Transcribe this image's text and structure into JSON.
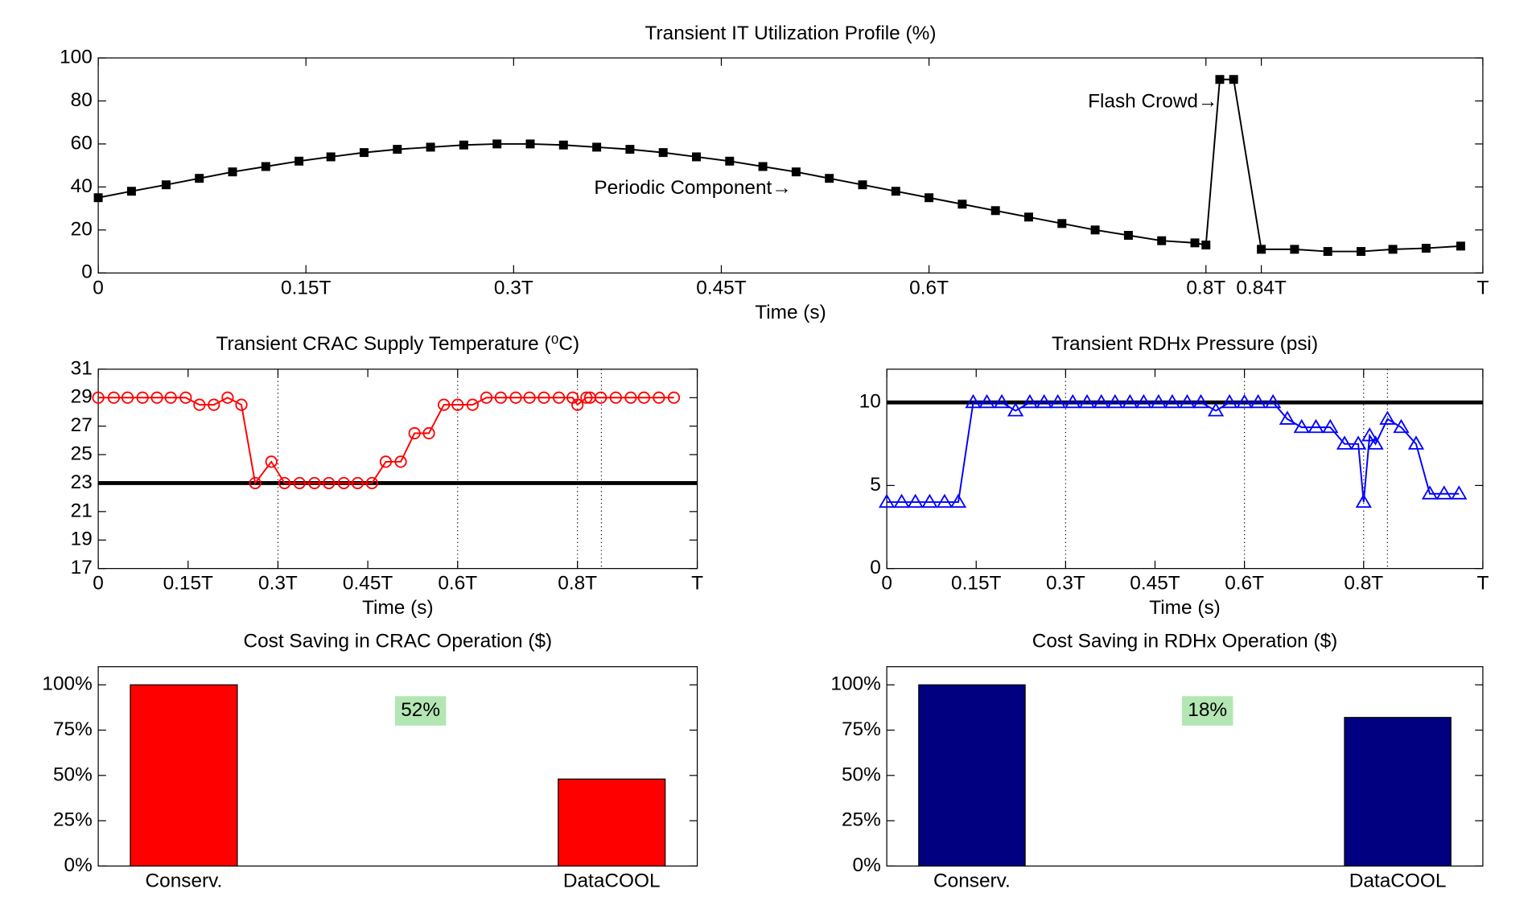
{
  "chart_data": [
    {
      "type": "line",
      "title": "Transient IT Utilization Profile (%)",
      "xlabel": "Time (s)",
      "xlim": [
        0,
        1
      ],
      "xticks": [
        0,
        {
          "value": 0.15,
          "label": "0.15T"
        },
        {
          "value": 0.3,
          "label": "0.3T"
        },
        {
          "value": 0.45,
          "label": "0.45T"
        },
        {
          "value": 0.6,
          "label": "0.6T"
        },
        {
          "value": 0.8,
          "label": "0.8T"
        },
        {
          "value": 0.84,
          "label": "0.84T"
        },
        {
          "value": 1,
          "label": "T"
        }
      ],
      "ylim": [
        0,
        100
      ],
      "yticks": [
        0,
        20,
        40,
        60,
        80,
        100
      ],
      "annotations": [
        "Periodic Component→",
        "Flash Crowd→"
      ],
      "series": [
        {
          "color": "#000000",
          "marker": "square",
          "x": [
            0,
            0.024,
            0.049,
            0.073,
            0.097,
            0.121,
            0.145,
            0.168,
            0.192,
            0.216,
            0.24,
            0.264,
            0.288,
            0.312,
            0.336,
            0.36,
            0.384,
            0.408,
            0.432,
            0.456,
            0.48,
            0.504,
            0.528,
            0.552,
            0.576,
            0.6,
            0.624,
            0.648,
            0.672,
            0.696,
            0.72,
            0.744,
            0.768,
            0.792,
            0.8,
            0.81,
            0.82,
            0.84,
            0.864,
            0.888,
            0.912,
            0.935,
            0.959,
            0.984
          ],
          "values": [
            35,
            38,
            41,
            44,
            47,
            49.5,
            52,
            54,
            56,
            57.5,
            58.5,
            59.5,
            60,
            60,
            59.5,
            58.5,
            57.5,
            56,
            54,
            52,
            49.5,
            47,
            44,
            41,
            38,
            35,
            32,
            29,
            26,
            23,
            20,
            17.5,
            15,
            14,
            13,
            90,
            90,
            11,
            11,
            10,
            10,
            11,
            11.5,
            12.5
          ]
        }
      ]
    },
    {
      "type": "line",
      "title": "Transient CRAC Supply Temperature (⁰C)",
      "xlabel": "Time (s)",
      "xlim": [
        0,
        1
      ],
      "xticks": [
        0,
        {
          "value": 0.15,
          "label": "0.15T"
        },
        {
          "value": 0.3,
          "label": "0.3T"
        },
        {
          "value": 0.45,
          "label": "0.45T"
        },
        {
          "value": 0.6,
          "label": "0.6T"
        },
        {
          "value": 0.8,
          "label": "0.8T"
        },
        {
          "value": 1,
          "label": "T"
        }
      ],
      "ylim": [
        17,
        31
      ],
      "yticks": [
        17,
        19,
        21,
        23,
        25,
        27,
        29,
        31
      ],
      "hline": 23,
      "vlines": [
        0.3,
        0.6,
        0.8,
        0.84
      ],
      "series": [
        {
          "color": "#ff0000",
          "marker": "circle",
          "x": [
            0,
            0.026,
            0.049,
            0.074,
            0.098,
            0.121,
            0.146,
            0.169,
            0.193,
            0.216,
            0.239,
            0.262,
            0.289,
            0.311,
            0.336,
            0.361,
            0.385,
            0.41,
            0.433,
            0.457,
            0.48,
            0.505,
            0.528,
            0.552,
            0.577,
            0.6,
            0.625,
            0.648,
            0.672,
            0.697,
            0.72,
            0.744,
            0.769,
            0.792,
            0.8,
            0.815,
            0.821,
            0.839,
            0.864,
            0.889,
            0.911,
            0.936,
            0.961
          ],
          "values": [
            29,
            29,
            29,
            29,
            29,
            29,
            29,
            28.5,
            28.5,
            29,
            28.5,
            23,
            24.5,
            23,
            23,
            23,
            23,
            23,
            23,
            23,
            24.5,
            24.5,
            26.5,
            26.5,
            28.5,
            28.5,
            28.5,
            29,
            29,
            29,
            29,
            29,
            29,
            29,
            28.5,
            29,
            29,
            29,
            29,
            29,
            29,
            29,
            29
          ]
        }
      ]
    },
    {
      "type": "line",
      "title": "Transient RDHx Pressure (psi)",
      "xlabel": "Time (s)",
      "xlim": [
        0,
        1
      ],
      "xticks": [
        0,
        {
          "value": 0.15,
          "label": "0.15T"
        },
        {
          "value": 0.3,
          "label": "0.3T"
        },
        {
          "value": 0.45,
          "label": "0.45T"
        },
        {
          "value": 0.6,
          "label": "0.6T"
        },
        {
          "value": 0.8,
          "label": "0.8T"
        },
        {
          "value": 1,
          "label": "T"
        }
      ],
      "ylim": [
        0,
        12
      ],
      "yticks": [
        0,
        5,
        10
      ],
      "hline": 10,
      "vlines": [
        0.3,
        0.6,
        0.8,
        0.84
      ],
      "series": [
        {
          "color": "#0000ff",
          "marker": "triangle",
          "x": [
            0,
            0.025,
            0.048,
            0.072,
            0.097,
            0.12,
            0.145,
            0.168,
            0.193,
            0.216,
            0.24,
            0.264,
            0.287,
            0.312,
            0.336,
            0.36,
            0.383,
            0.408,
            0.431,
            0.456,
            0.479,
            0.504,
            0.527,
            0.552,
            0.575,
            0.6,
            0.623,
            0.648,
            0.672,
            0.696,
            0.72,
            0.744,
            0.768,
            0.791,
            0.8,
            0.81,
            0.82,
            0.84,
            0.863,
            0.888,
            0.911,
            0.935,
            0.96
          ],
          "values": [
            4,
            4,
            4,
            4,
            4,
            4,
            10,
            10,
            10,
            9.5,
            10,
            10,
            10,
            10,
            10,
            10,
            10,
            10,
            10,
            10,
            10,
            10,
            10,
            9.5,
            10,
            10,
            10,
            10,
            9,
            8.5,
            8.5,
            8.5,
            7.5,
            7.5,
            4,
            8,
            7.5,
            9,
            8.5,
            7.5,
            4.5,
            4.5,
            4.5
          ]
        }
      ]
    },
    {
      "type": "bar",
      "title": "Cost Saving in CRAC Operation ($)",
      "categories": [
        "Conserv.",
        "DataCOOL"
      ],
      "values": [
        100,
        48
      ],
      "color": "#ff0000",
      "ylim": [
        0,
        110
      ],
      "yticks": [
        {
          "value": 0,
          "label": "0%"
        },
        {
          "value": 25,
          "label": "25%"
        },
        {
          "value": 50,
          "label": "50%"
        },
        {
          "value": 75,
          "label": "75%"
        },
        {
          "value": 100,
          "label": "100%"
        }
      ],
      "annotation": "52%"
    },
    {
      "type": "bar",
      "title": "Cost Saving in RDHx Operation ($)",
      "categories": [
        "Conserv.",
        "DataCOOL"
      ],
      "values": [
        100,
        82
      ],
      "color": "#000080",
      "ylim": [
        0,
        110
      ],
      "yticks": [
        {
          "value": 0,
          "label": "0%"
        },
        {
          "value": 25,
          "label": "25%"
        },
        {
          "value": 50,
          "label": "50%"
        },
        {
          "value": 75,
          "label": "75%"
        },
        {
          "value": 100,
          "label": "100%"
        }
      ],
      "annotation": "18%"
    }
  ]
}
